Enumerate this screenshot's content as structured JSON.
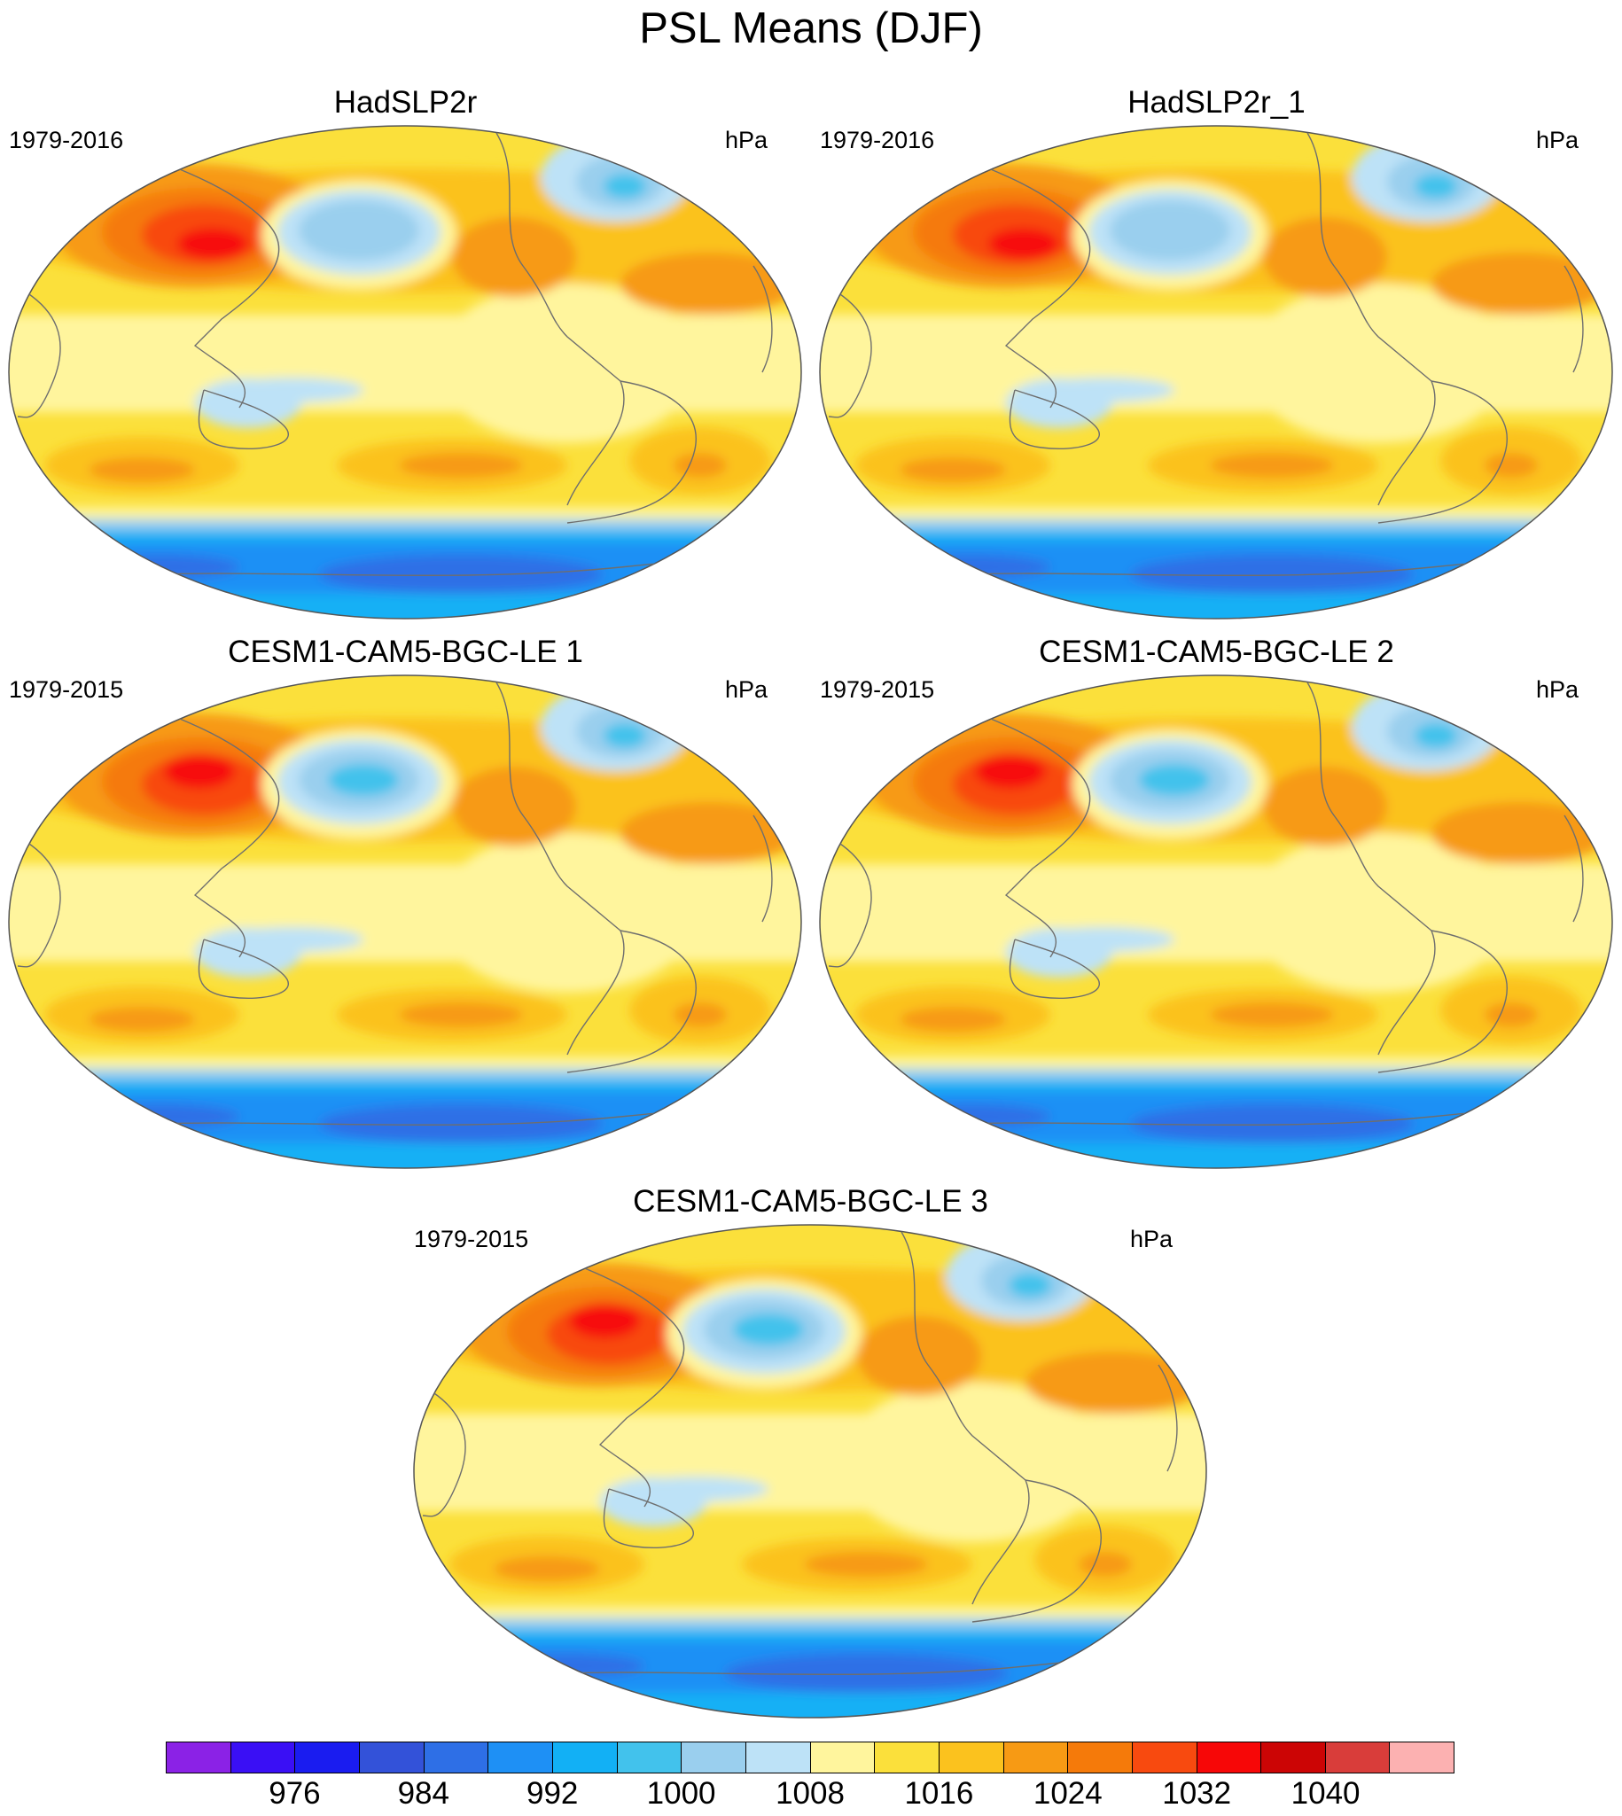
{
  "figure": {
    "title": "PSL Means (DJF)"
  },
  "panels": [
    {
      "title": "HadSLP2r",
      "period": "1979-2016",
      "units": "hPa"
    },
    {
      "title": "HadSLP2r_1",
      "period": "1979-2016",
      "units": "hPa"
    },
    {
      "title": "CESM1-CAM5-BGC-LE 1",
      "period": "1979-2015",
      "units": "hPa"
    },
    {
      "title": "CESM1-CAM5-BGC-LE 2",
      "period": "1979-2015",
      "units": "hPa"
    },
    {
      "title": "CESM1-CAM5-BGC-LE 3",
      "period": "1979-2015",
      "units": "hPa"
    }
  ],
  "colorbar": {
    "colors": [
      "#8b22e6",
      "#3a0ff5",
      "#1a1cf0",
      "#3352d9",
      "#2e6fe6",
      "#1e90f5",
      "#12b0f5",
      "#42c2ec",
      "#9acfee",
      "#bde2f7",
      "#fff59d",
      "#fbe03b",
      "#fbc21e",
      "#f79a14",
      "#f57a0a",
      "#f84a0f",
      "#f70707",
      "#cc0505",
      "#d93d3a",
      "#fcb1b1"
    ],
    "labels": [
      "976",
      "984",
      "992",
      "1000",
      "1008",
      "1016",
      "1024",
      "1032",
      "1040"
    ],
    "label_boundaries": [
      2,
      4,
      6,
      8,
      10,
      12,
      14,
      16,
      18
    ]
  }
}
